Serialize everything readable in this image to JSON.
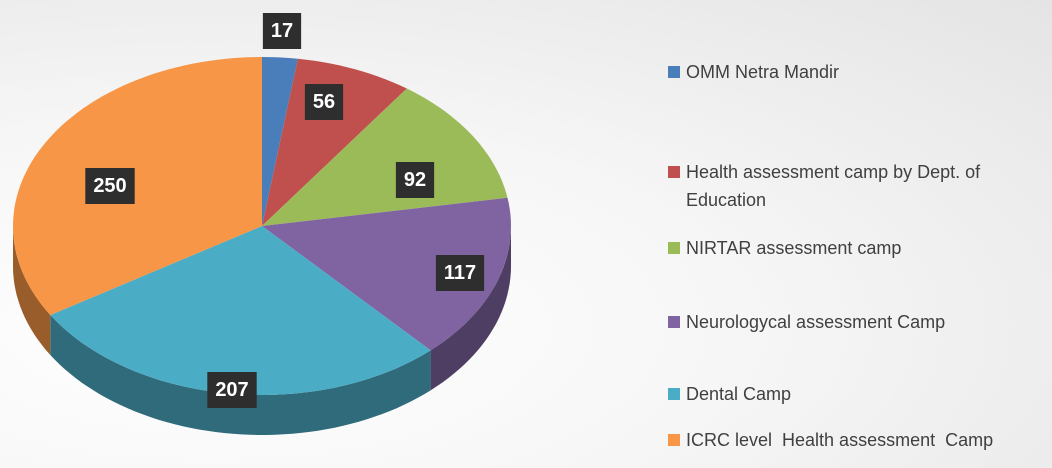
{
  "chart_data": {
    "type": "pie",
    "categories": [
      "OMM Netra Mandir",
      "Health assessment camp by Dept. of Education",
      "NIRTAR assessment camp",
      "Neurologycal assessment Camp",
      "Dental Camp",
      "ICRC level  Health assessment  Camp"
    ],
    "values": [
      17,
      56,
      92,
      117,
      207,
      250
    ],
    "colors": [
      "#4a7ebb",
      "#c0504d",
      "#9bbb59",
      "#8064a2",
      "#4bacc6",
      "#f79646"
    ],
    "legend": "right"
  }
}
